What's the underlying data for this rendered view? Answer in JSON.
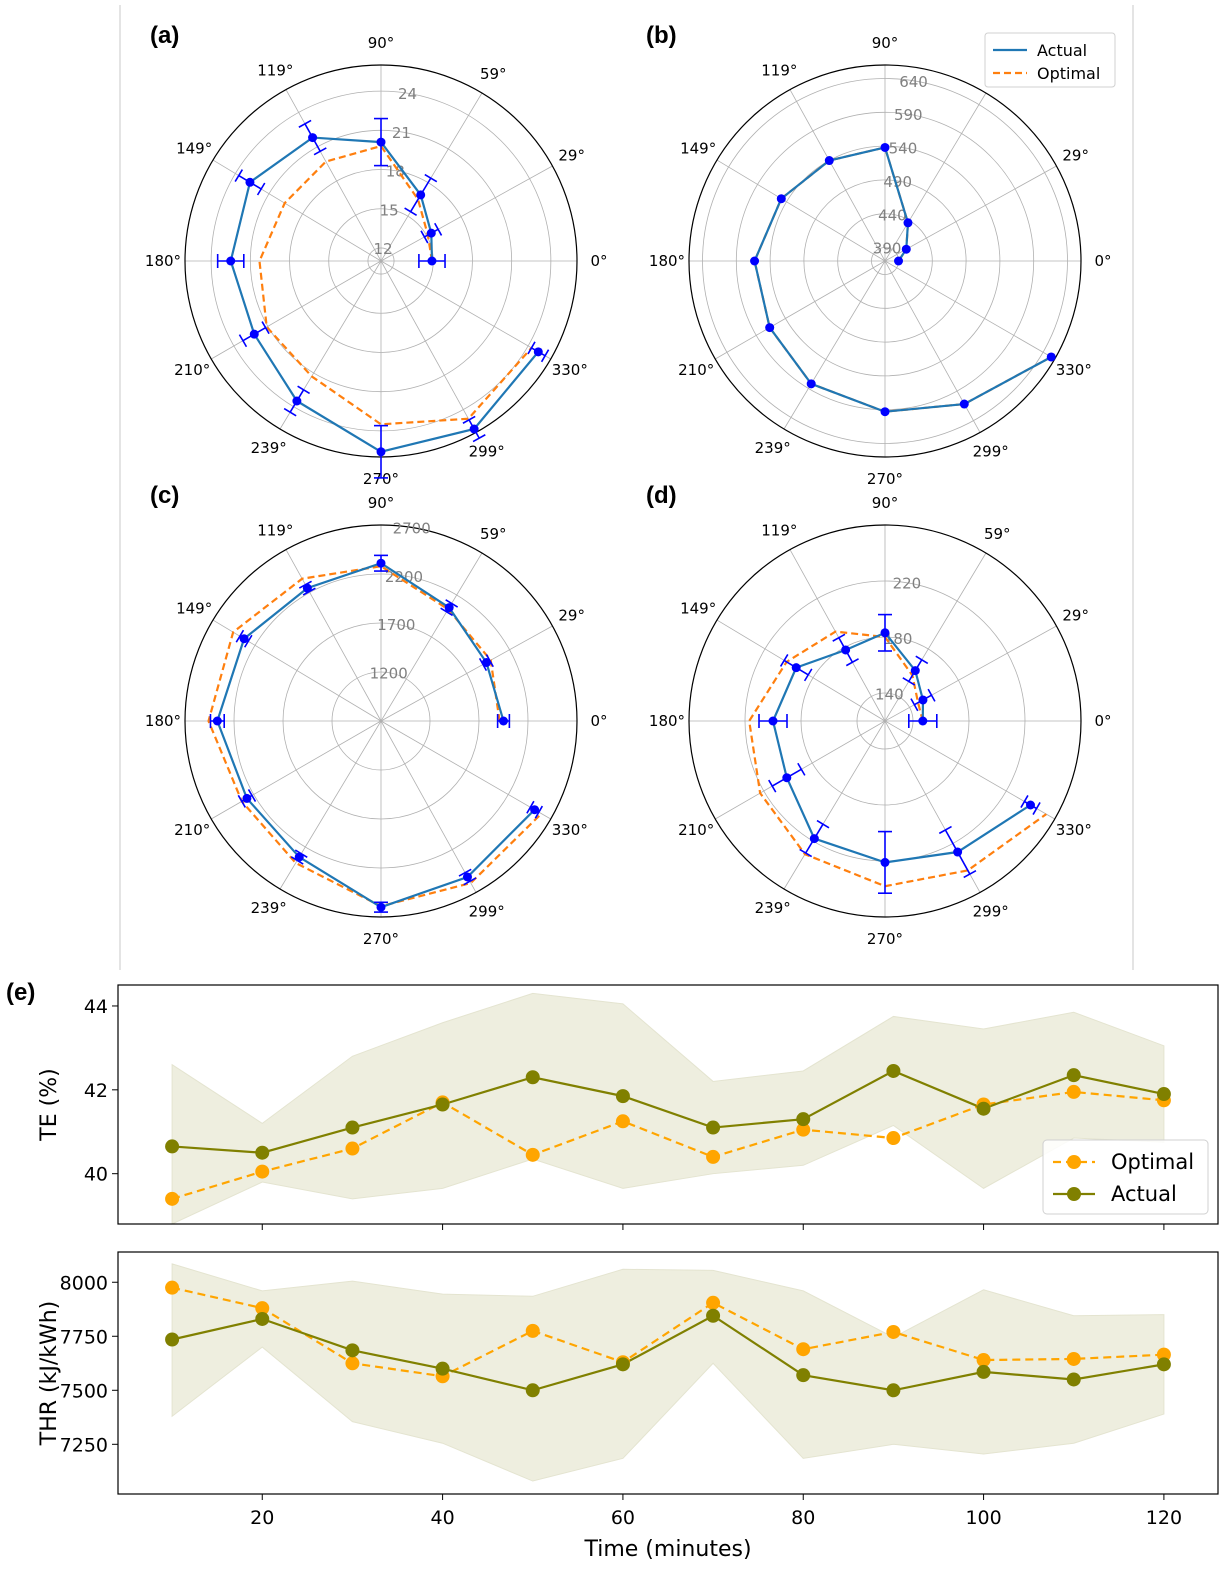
{
  "colors": {
    "actual_polar": "#1f77b4",
    "optimal_polar": "#ff7f0e",
    "errorbar": "#0000ff",
    "actual_line": "#808000",
    "optimal_line": "#ffa500",
    "band": "#eeeedf"
  },
  "angle_labels": [
    "0°",
    "29°",
    "59°",
    "90°",
    "119°",
    "149°",
    "180°",
    "210°",
    "239°",
    "270°",
    "299°",
    "330°"
  ],
  "chart_data": [
    {
      "panel": "(a)",
      "type": "polar",
      "theta_deg": [
        0,
        29,
        59,
        90,
        119,
        149,
        180,
        210,
        239,
        270,
        299,
        330
      ],
      "rlim": [
        11,
        26
      ],
      "rticks": [
        12,
        15,
        18,
        21,
        24
      ],
      "series": [
        {
          "name": "Actual",
          "values": [
            14.9,
            15.4,
            16.9,
            20.1,
            21.8,
            22.7,
            22.5,
            22.2,
            23.5,
            25.6,
            25.7,
            24.9
          ],
          "errors": [
            1.0,
            0.6,
            1.5,
            1.8,
            1.2,
            1.0,
            1.0,
            1.0,
            1.0,
            2.0,
            0.8,
            0.6
          ]
        },
        {
          "name": "Optimal",
          "values": [
            14.9,
            15.1,
            16.5,
            19.8,
            19.7,
            19.6,
            20.3,
            21.1,
            21.3,
            23.5,
            24.8,
            24.3
          ]
        }
      ],
      "legend": false
    },
    {
      "panel": "(b)",
      "type": "polar",
      "theta_deg": [
        0,
        29,
        59,
        90,
        119,
        149,
        180,
        210,
        239,
        270,
        299,
        330
      ],
      "rlim": [
        370,
        660
      ],
      "rticks": [
        390,
        440,
        490,
        540,
        590,
        640
      ],
      "series": [
        {
          "name": "Actual",
          "values": [
            390,
            406,
            436,
            538,
            540,
            549,
            563,
            567,
            582,
            593,
            612,
            654
          ],
          "errors": [
            0,
            0,
            0,
            0,
            0,
            0,
            0,
            0,
            0,
            0,
            0,
            0
          ]
        },
        {
          "name": "Optimal",
          "values": [
            390,
            406,
            436,
            538,
            540,
            549,
            563,
            567,
            582,
            593,
            612,
            654
          ]
        }
      ],
      "legend": true,
      "legend_location": "top-right"
    },
    {
      "panel": "(c)",
      "type": "polar",
      "theta_deg": [
        0,
        29,
        59,
        90,
        119,
        149,
        180,
        210,
        239,
        270,
        299,
        330
      ],
      "rlim": [
        700,
        2700
      ],
      "rticks": [
        1200,
        1700,
        2200,
        2700
      ],
      "series": [
        {
          "name": "Actual",
          "values": [
            1950,
            1930,
            2050,
            2310,
            2250,
            2330,
            2370,
            2280,
            2320,
            2600,
            2520,
            2510
          ],
          "errors": [
            60,
            40,
            50,
            80,
            40,
            50,
            70,
            60,
            40,
            50,
            50,
            50
          ]
        },
        {
          "name": "Optimal",
          "values": [
            1910,
            1980,
            2030,
            2280,
            2360,
            2460,
            2460,
            2340,
            2390,
            2590,
            2590,
            2590
          ]
        }
      ],
      "legend": false
    },
    {
      "panel": "(d)",
      "type": "polar",
      "theta_deg": [
        0,
        29,
        59,
        90,
        119,
        149,
        180,
        210,
        239,
        270,
        299,
        330
      ],
      "rlim": [
        120,
        260
      ],
      "rticks": [
        140,
        180,
        220
      ],
      "series": [
        {
          "name": "Actual",
          "values": [
            147,
            151,
            162,
            183,
            178,
            194,
            200,
            201,
            218,
            221,
            227,
            240
          ],
          "errors": [
            10,
            7,
            9,
            13,
            10,
            10,
            10,
            12,
            12,
            22,
            18,
            5
          ]
        },
        {
          "name": "Optimal",
          "values": [
            147,
            147,
            158,
            180,
            193,
            202,
            217,
            223,
            231,
            238,
            242,
            253
          ]
        }
      ],
      "legend": false
    },
    {
      "panel": "(e)",
      "type": "line",
      "x": [
        10,
        20,
        30,
        40,
        50,
        60,
        70,
        80,
        90,
        100,
        110,
        120
      ],
      "xlim": [
        4,
        126
      ],
      "ylim": [
        38.8,
        44.5
      ],
      "yticks": [
        40,
        42,
        44
      ],
      "ylabel": "TE (%)",
      "series": [
        {
          "name": "Optimal",
          "values": [
            39.4,
            40.05,
            40.6,
            41.7,
            40.45,
            41.25,
            40.4,
            41.05,
            40.85,
            41.65,
            41.95,
            41.75
          ]
        },
        {
          "name": "Actual",
          "values": [
            40.65,
            40.5,
            41.1,
            41.65,
            42.3,
            41.85,
            41.1,
            41.3,
            42.45,
            41.55,
            42.35,
            41.9
          ]
        }
      ],
      "band": {
        "upper": [
          42.6,
          41.2,
          42.8,
          43.6,
          44.3,
          44.05,
          42.2,
          42.45,
          43.75,
          43.45,
          43.85,
          43.05
        ],
        "lower": [
          38.8,
          39.8,
          39.4,
          39.65,
          40.35,
          39.65,
          40.0,
          40.2,
          41.15,
          39.65,
          40.85,
          40.75
        ]
      },
      "legend_location": "lower right"
    },
    {
      "panel": "",
      "type": "line",
      "x": [
        10,
        20,
        30,
        40,
        50,
        60,
        70,
        80,
        90,
        100,
        110,
        120
      ],
      "xlim": [
        4,
        126
      ],
      "ylim": [
        7020,
        8140
      ],
      "yticks": [
        7250,
        7500,
        7750,
        8000
      ],
      "xticks": [
        20,
        40,
        60,
        80,
        100,
        120
      ],
      "ylabel": "THR (kJ/kWh)",
      "xlabel": "Time (minutes)",
      "series": [
        {
          "name": "Optimal",
          "values": [
            7975,
            7880,
            7625,
            7565,
            7775,
            7630,
            7905,
            7690,
            7770,
            7640,
            7645,
            7665
          ]
        },
        {
          "name": "Actual",
          "values": [
            7735,
            7830,
            7685,
            7600,
            7500,
            7620,
            7845,
            7570,
            7500,
            7585,
            7550,
            7620
          ]
        }
      ],
      "band": {
        "upper": [
          8085,
          7960,
          8005,
          7945,
          7935,
          8060,
          8055,
          7960,
          7745,
          7965,
          7845,
          7850
        ],
        "lower": [
          7380,
          7700,
          7355,
          7255,
          7080,
          7185,
          7625,
          7185,
          7250,
          7205,
          7255,
          7390
        ]
      }
    }
  ]
}
